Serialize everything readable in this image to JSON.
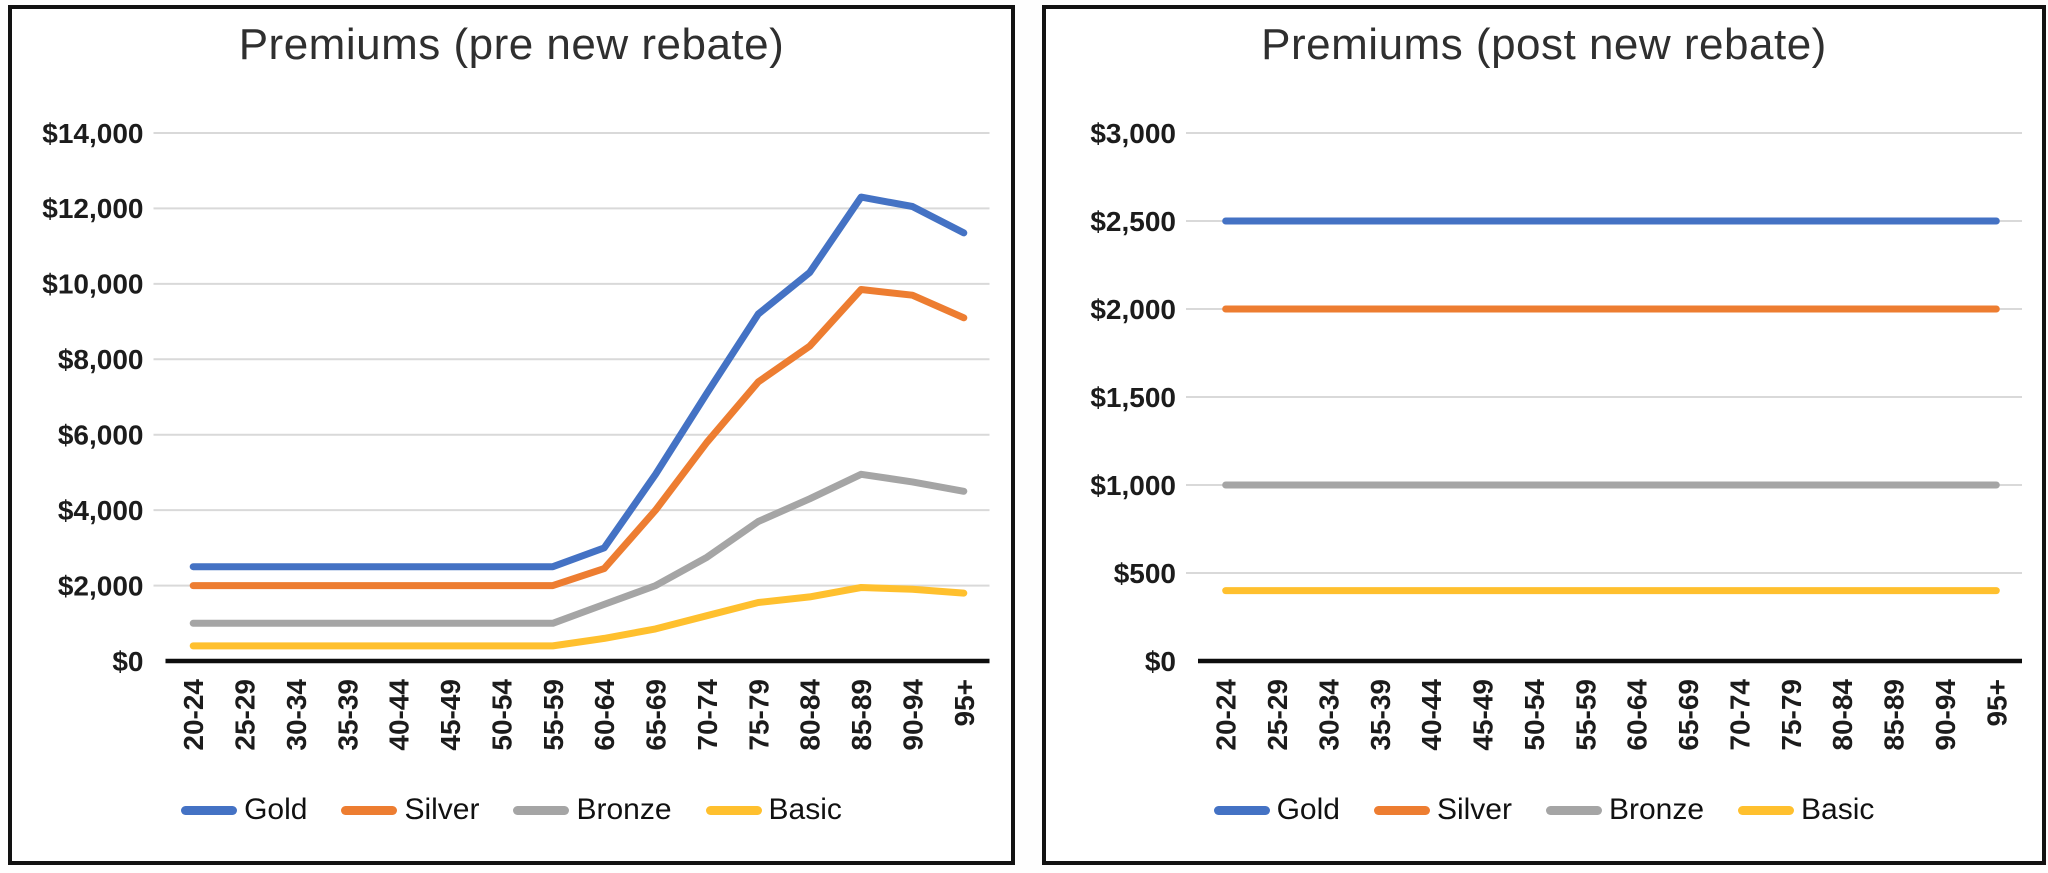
{
  "chart_data": [
    {
      "type": "line",
      "title": "Premiums (pre new rebate)",
      "categories": [
        "20-24",
        "25-29",
        "30-34",
        "35-39",
        "40-44",
        "45-49",
        "50-54",
        "55-59",
        "60-64",
        "65-69",
        "70-74",
        "75-79",
        "80-84",
        "85-89",
        "90-94",
        "95+"
      ],
      "series": [
        {
          "name": "Gold",
          "color": "#4472C4",
          "values": [
            2500,
            2500,
            2500,
            2500,
            2500,
            2500,
            2500,
            2500,
            3000,
            4950,
            7100,
            9200,
            10300,
            12300,
            12050,
            11350
          ]
        },
        {
          "name": "Silver",
          "color": "#ED7D31",
          "values": [
            2000,
            2000,
            2000,
            2000,
            2000,
            2000,
            2000,
            2000,
            2450,
            4000,
            5800,
            7400,
            8350,
            9850,
            9700,
            9100
          ]
        },
        {
          "name": "Bronze",
          "color": "#A5A5A5",
          "values": [
            1000,
            1000,
            1000,
            1000,
            1000,
            1000,
            1000,
            1000,
            1500,
            2000,
            2750,
            3700,
            4300,
            4950,
            4750,
            4500
          ]
        },
        {
          "name": "Basic",
          "color": "#FFC02E",
          "values": [
            400,
            400,
            400,
            400,
            400,
            400,
            400,
            400,
            600,
            850,
            1200,
            1550,
            1700,
            1950,
            1900,
            1800
          ]
        }
      ],
      "ylim": [
        0,
        14000
      ],
      "y_ticks": [
        {
          "value": 0,
          "label": "$0"
        },
        {
          "value": 2000,
          "label": "$2,000"
        },
        {
          "value": 4000,
          "label": "$4,000"
        },
        {
          "value": 6000,
          "label": "$6,000"
        },
        {
          "value": 8000,
          "label": "$8,000"
        },
        {
          "value": 10000,
          "label": "$10,000"
        },
        {
          "value": 12000,
          "label": "$12,000"
        },
        {
          "value": 14000,
          "label": "$14,000"
        }
      ],
      "grid": true,
      "grid_color": "#D9D9D9",
      "axis_color": "#0d0d0d",
      "legend_position": "bottom",
      "xlabel": "",
      "ylabel": ""
    },
    {
      "type": "line",
      "title": "Premiums (post new rebate)",
      "categories": [
        "20-24",
        "25-29",
        "30-34",
        "35-39",
        "40-44",
        "45-49",
        "50-54",
        "55-59",
        "60-64",
        "65-69",
        "70-74",
        "75-79",
        "80-84",
        "85-89",
        "90-94",
        "95+"
      ],
      "series": [
        {
          "name": "Gold",
          "color": "#4472C4",
          "values": [
            2500,
            2500,
            2500,
            2500,
            2500,
            2500,
            2500,
            2500,
            2500,
            2500,
            2500,
            2500,
            2500,
            2500,
            2500,
            2500
          ]
        },
        {
          "name": "Silver",
          "color": "#ED7D31",
          "values": [
            2000,
            2000,
            2000,
            2000,
            2000,
            2000,
            2000,
            2000,
            2000,
            2000,
            2000,
            2000,
            2000,
            2000,
            2000,
            2000
          ]
        },
        {
          "name": "Bronze",
          "color": "#A5A5A5",
          "values": [
            1000,
            1000,
            1000,
            1000,
            1000,
            1000,
            1000,
            1000,
            1000,
            1000,
            1000,
            1000,
            1000,
            1000,
            1000,
            1000
          ]
        },
        {
          "name": "Basic",
          "color": "#FFC02E",
          "values": [
            400,
            400,
            400,
            400,
            400,
            400,
            400,
            400,
            400,
            400,
            400,
            400,
            400,
            400,
            400,
            400
          ]
        }
      ],
      "ylim": [
        0,
        3000
      ],
      "y_ticks": [
        {
          "value": 0,
          "label": "$0"
        },
        {
          "value": 500,
          "label": "$500"
        },
        {
          "value": 1000,
          "label": "$1,000"
        },
        {
          "value": 1500,
          "label": "$1,500"
        },
        {
          "value": 2000,
          "label": "$2,000"
        },
        {
          "value": 2500,
          "label": "$2,500"
        },
        {
          "value": 3000,
          "label": "$3,000"
        }
      ],
      "grid": true,
      "grid_color": "#D9D9D9",
      "axis_color": "#0d0d0d",
      "legend_position": "bottom",
      "xlabel": "",
      "ylabel": ""
    }
  ]
}
